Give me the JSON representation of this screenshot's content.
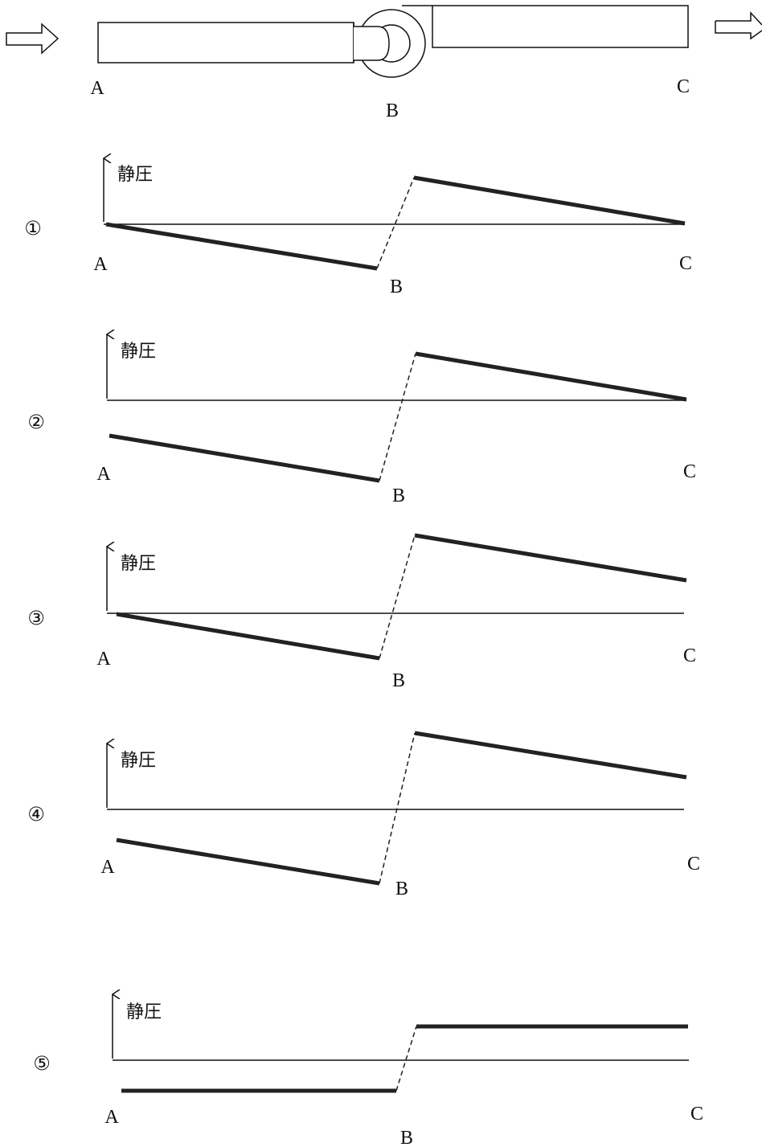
{
  "duct": {
    "point_a": "A",
    "point_b": "B",
    "point_c": "C"
  },
  "diagrams": [
    {
      "number": "①",
      "axis_label": "静圧",
      "point_a": "A",
      "point_b": "B",
      "point_c": "C"
    },
    {
      "number": "②",
      "axis_label": "静圧",
      "point_a": "A",
      "point_b": "B",
      "point_c": "C"
    },
    {
      "number": "③",
      "axis_label": "静圧",
      "point_a": "A",
      "point_b": "B",
      "point_c": "C"
    },
    {
      "number": "④",
      "axis_label": "静圧",
      "point_a": "A",
      "point_b": "B",
      "point_c": "C"
    },
    {
      "number": "⑤",
      "axis_label": "静圧",
      "point_a": "A",
      "point_b": "B",
      "point_c": "C"
    }
  ]
}
